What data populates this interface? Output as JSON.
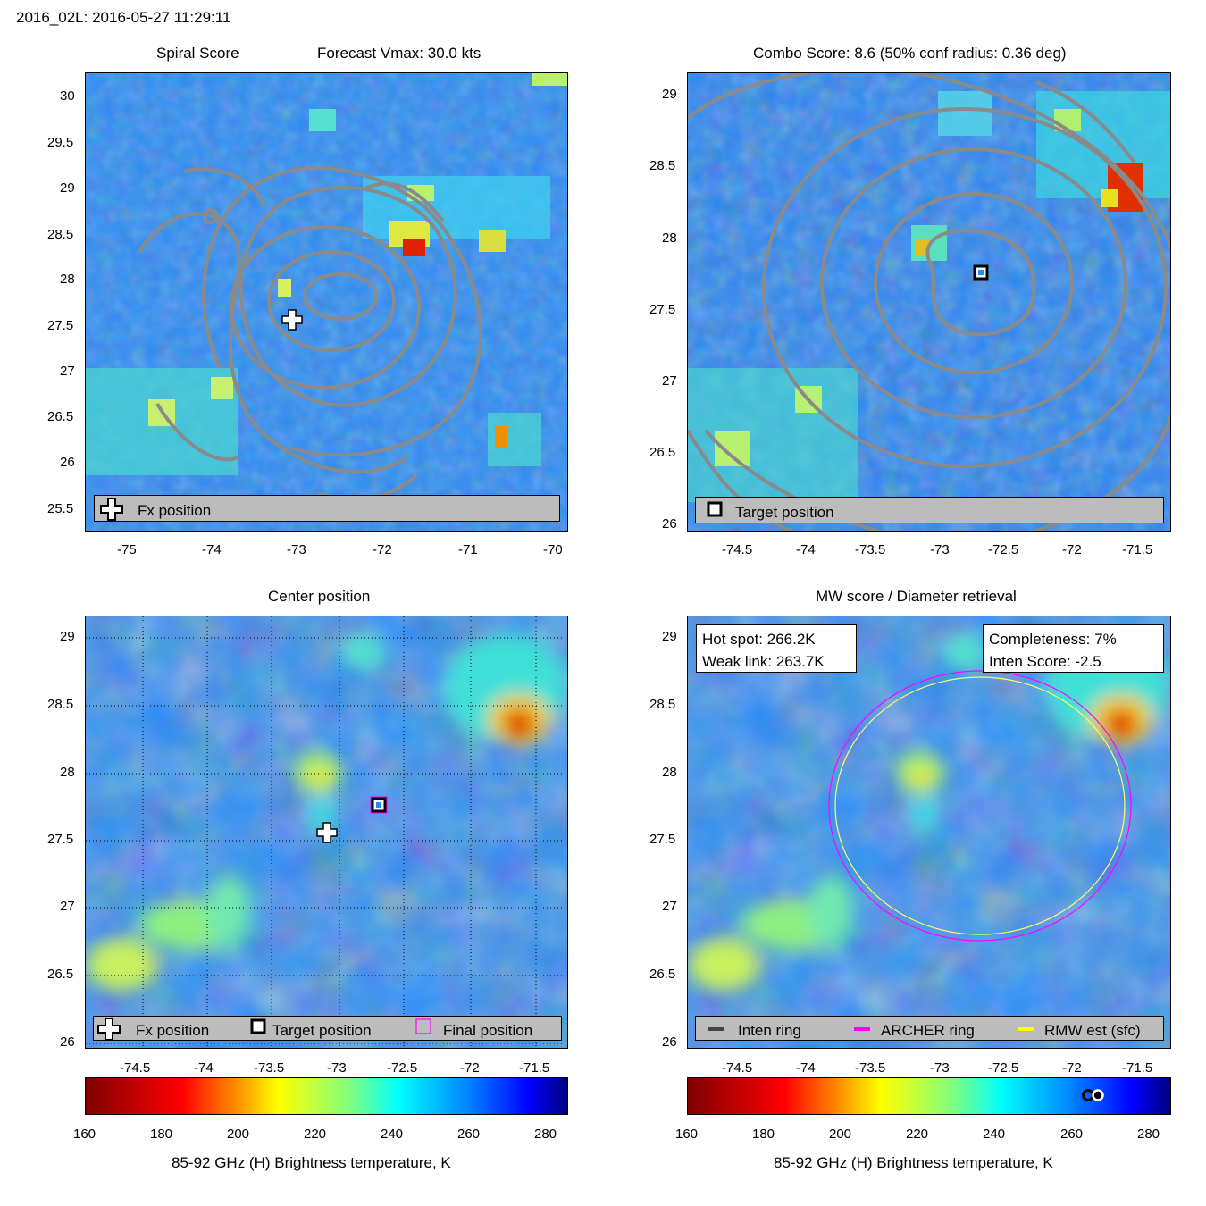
{
  "header": "2016_02L: 2016-05-27 11:29:11",
  "colors": {
    "contour": "#8a8a8a",
    "field_base": "#1f8cff",
    "archer_ring": "#ff00ff",
    "rmw_ring": "#ffff00",
    "inten_ring": "#444444"
  },
  "panels": {
    "spiral": {
      "title_left": "Spiral Score",
      "title_right": "Forecast Vmax: 30.0 kts",
      "legend": {
        "label": "Fx position"
      },
      "x_ticks": [
        "-75",
        "-74",
        "-73",
        "-72",
        "-71",
        "-70"
      ],
      "y_ticks": [
        "30",
        "29.5",
        "29",
        "28.5",
        "28",
        "27.5",
        "27",
        "26.5",
        "26",
        "25.5"
      ]
    },
    "combo": {
      "title": "Combo Score: 8.6  (50% conf radius: 0.36 deg)",
      "legend": {
        "label": "Target position"
      },
      "x_ticks": [
        "-74.5",
        "-74",
        "-73.5",
        "-73",
        "-72.5",
        "-72",
        "-71.5"
      ],
      "y_ticks": [
        "29",
        "28.5",
        "28",
        "27.5",
        "27",
        "26.5",
        "26"
      ]
    },
    "center": {
      "title": "Center position",
      "legend": {
        "fx": "Fx position",
        "target": "Target position",
        "final": "Final position"
      },
      "x_ticks": [
        "-74.5",
        "-74",
        "-73.5",
        "-73",
        "-72.5",
        "-72",
        "-71.5"
      ],
      "y_ticks": [
        "29",
        "28.5",
        "28",
        "27.5",
        "27",
        "26.5",
        "26"
      ]
    },
    "mw": {
      "title": "MW score / Diameter retrieval",
      "info_left": {
        "hot_spot": "Hot spot: 266.2K",
        "weak_link": "Weak link: 263.7K"
      },
      "info_right": {
        "completeness": "Completeness: 7%",
        "inten_score": "Inten Score: -2.5"
      },
      "legend": {
        "inten": "Inten ring",
        "archer": "ARCHER ring",
        "rmw": "RMW est (sfc)"
      },
      "x_ticks": [
        "-74.5",
        "-74",
        "-73.5",
        "-73",
        "-72.5",
        "-72",
        "-71.5"
      ],
      "y_ticks": [
        "29",
        "28.5",
        "28",
        "27.5",
        "27",
        "26.5",
        "26"
      ]
    }
  },
  "colorbars": {
    "label": "85-92 GHz (H) Brightness temperature, K",
    "ticks": [
      "160",
      "180",
      "200",
      "220",
      "240",
      "260",
      "280"
    ]
  },
  "chart_data": [
    {
      "type": "heatmap",
      "title": "Spiral Score",
      "subtitle": "Forecast Vmax: 30.0 kts",
      "x_range": [
        -75.5,
        -70
      ],
      "y_range": [
        25.3,
        30.25
      ],
      "fx_position": {
        "lon": -73.1,
        "lat": 27.55
      },
      "hot_spots": [
        {
          "lon": -71.7,
          "lat": 28.35,
          "tb": 170
        },
        {
          "lon": -70.6,
          "lat": 26.3,
          "tb": 195
        }
      ],
      "legend": [
        "Fx position"
      ]
    },
    {
      "type": "heatmap",
      "title": "Combo Score: 8.6  (50% conf radius: 0.36 deg)",
      "x_range": [
        -74.85,
        -71.45
      ],
      "y_range": [
        25.95,
        29.15
      ],
      "target_position": {
        "lon": -72.7,
        "lat": 27.77
      },
      "legend": [
        "Target position"
      ]
    },
    {
      "type": "heatmap",
      "title": "Center position",
      "x_range": [
        -74.85,
        -71.45
      ],
      "y_range": [
        25.95,
        29.15
      ],
      "fx_position": {
        "lon": -73.1,
        "lat": 27.55
      },
      "target_position": {
        "lon": -72.7,
        "lat": 27.77
      },
      "final_position": {
        "lon": -72.7,
        "lat": 27.77
      },
      "legend": [
        "Fx position",
        "Target position",
        "Final position"
      ]
    },
    {
      "type": "heatmap",
      "title": "MW score / Diameter retrieval",
      "x_range": [
        -74.85,
        -71.45
      ],
      "y_range": [
        25.95,
        29.15
      ],
      "hot_spot_K": 266.2,
      "weak_link_K": 263.7,
      "completeness_pct": 7,
      "inten_score": -2.5,
      "archer_ring": {
        "lon": -72.7,
        "lat": 27.75,
        "radius_deg": 1.05
      },
      "rmw_ring": {
        "lon": -72.7,
        "lat": 27.75,
        "radius_deg": 1.02
      },
      "colorbar_markers_K": [
        263.7,
        266.2
      ],
      "legend": [
        "Inten ring",
        "ARCHER ring",
        "RMW est (sfc)"
      ]
    }
  ]
}
